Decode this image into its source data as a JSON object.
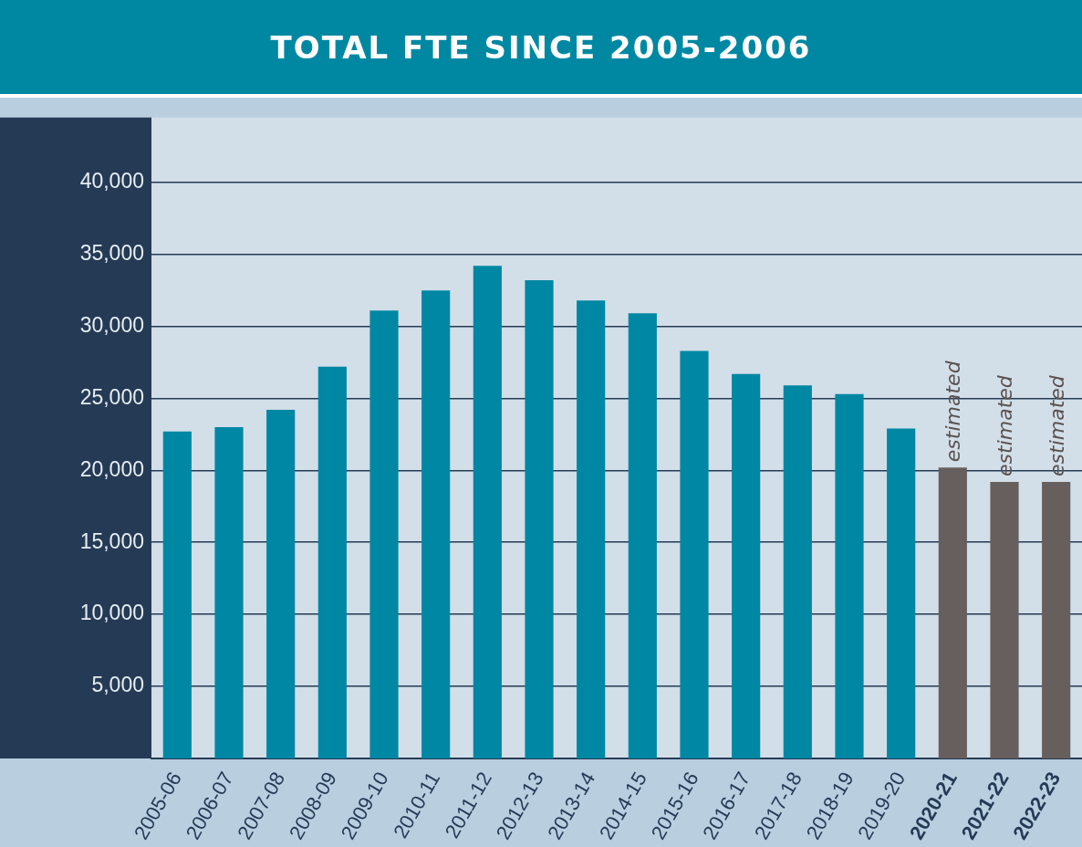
{
  "chart_data": {
    "type": "bar",
    "title": "TOTAL FTE SINCE 2005-2006",
    "categories": [
      "2005-06",
      "2006-07",
      "2007-08",
      "2008-09",
      "2009-10",
      "2010-11",
      "2011-12",
      "2012-13",
      "2013-14",
      "2014-15",
      "2015-16",
      "2016-17",
      "2017-18",
      "2018-19",
      "2019-20",
      "2020-21",
      "2021-22",
      "2022-23"
    ],
    "values": [
      22700,
      23000,
      24200,
      27200,
      31100,
      32500,
      34200,
      33200,
      31800,
      30900,
      28300,
      26700,
      25900,
      25300,
      22900,
      20200,
      19200,
      19200
    ],
    "colors": [
      "#0087a4",
      "#0087a4",
      "#0087a4",
      "#0087a4",
      "#0087a4",
      "#0087a4",
      "#0087a4",
      "#0087a4",
      "#0087a4",
      "#0087a4",
      "#0087a4",
      "#0087a4",
      "#0087a4",
      "#0087a4",
      "#0087a4",
      "#675f5d",
      "#675f5d",
      "#675f5d"
    ],
    "ylim": [
      0,
      44500
    ],
    "yticks": [
      {
        "value": 5000,
        "label": "5,000"
      },
      {
        "value": 10000,
        "label": "10,000"
      },
      {
        "value": 15000,
        "label": "15,000"
      },
      {
        "value": 20000,
        "label": "20,000"
      },
      {
        "value": 25000,
        "label": "25,000"
      },
      {
        "value": 30000,
        "label": "30,000"
      },
      {
        "value": 35000,
        "label": "35,000"
      },
      {
        "value": 40000,
        "label": "40,000"
      }
    ],
    "grid": "y",
    "annotations": [
      {
        "text": "estimated",
        "x": "2020-21",
        "y": 20200
      },
      {
        "text": "estimated",
        "x": "2021-22",
        "y": 19200
      },
      {
        "text": "estimated",
        "x": "2022-23",
        "y": 19200
      }
    ]
  }
}
